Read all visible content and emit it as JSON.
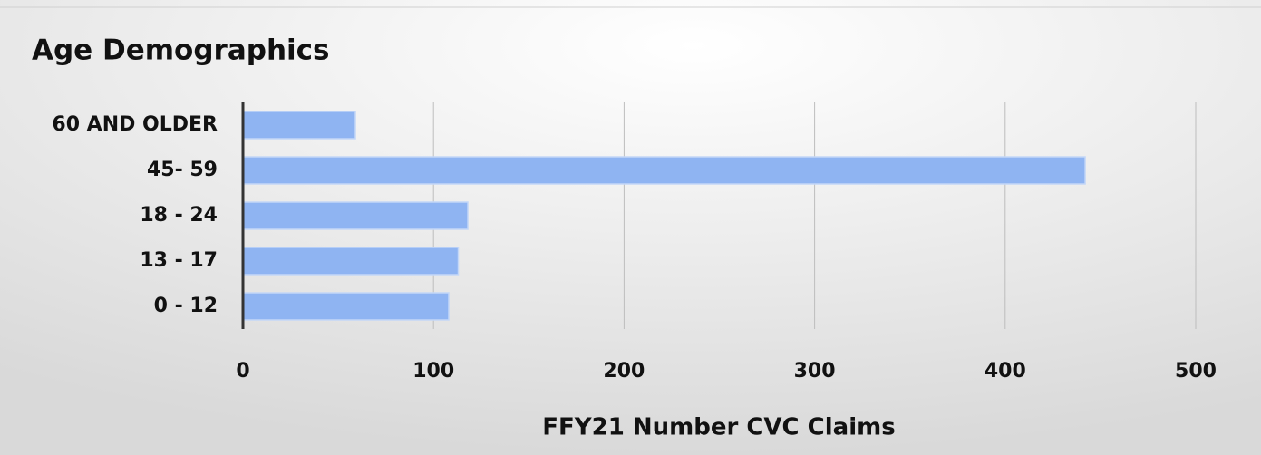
{
  "chart_data": {
    "type": "bar",
    "orientation": "horizontal",
    "title": "Age Demographics",
    "x_axis_label": "FFY21 Number CVC Claims",
    "categories": [
      "60 AND OLDER",
      "45- 59",
      "18 - 24",
      "13 - 17",
      "0 - 12"
    ],
    "values": [
      59,
      442,
      118,
      113,
      108
    ],
    "color": "#8fb4f2",
    "xlim": [
      0,
      500
    ],
    "xticks": [
      0,
      100,
      200,
      300,
      400,
      500
    ],
    "grid": true
  }
}
